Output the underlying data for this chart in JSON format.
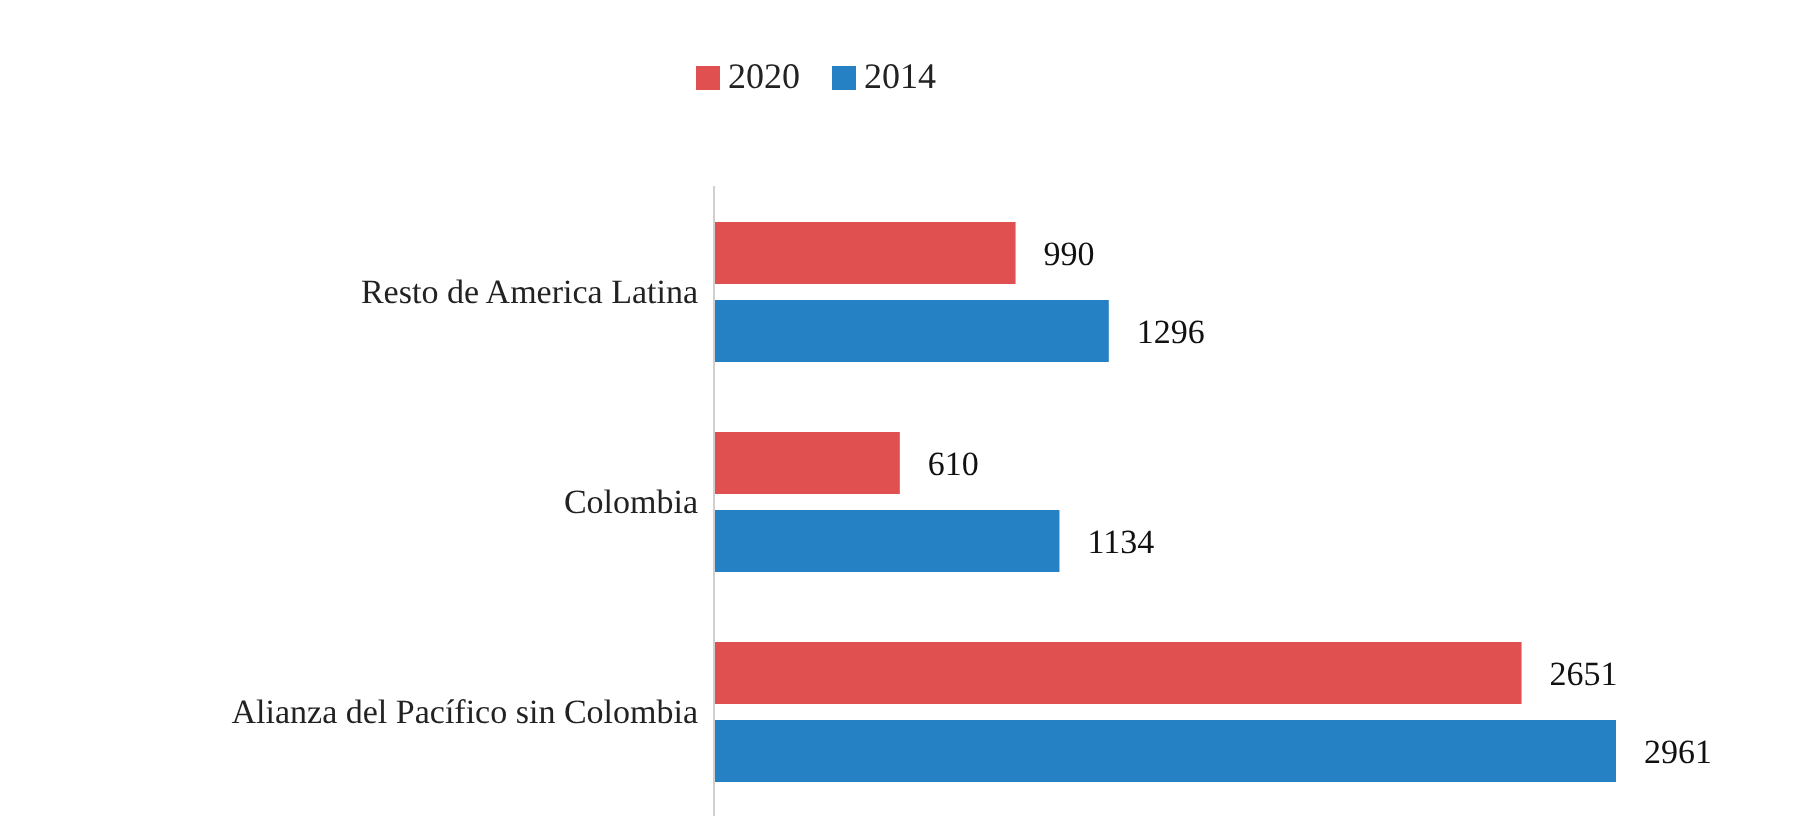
{
  "chart_data": {
    "type": "bar",
    "orientation": "horizontal",
    "categories": [
      "Resto de America Latina",
      "Colombia",
      "Alianza del Pacífico sin Colombia"
    ],
    "series": [
      {
        "name": "2020",
        "color": "#e05050",
        "values": [
          990,
          610,
          2651
        ]
      },
      {
        "name": "2014",
        "color": "#2581c4",
        "values": [
          1296,
          1134,
          2961
        ]
      }
    ],
    "data_labels": true,
    "legend": "top",
    "grid": false
  }
}
